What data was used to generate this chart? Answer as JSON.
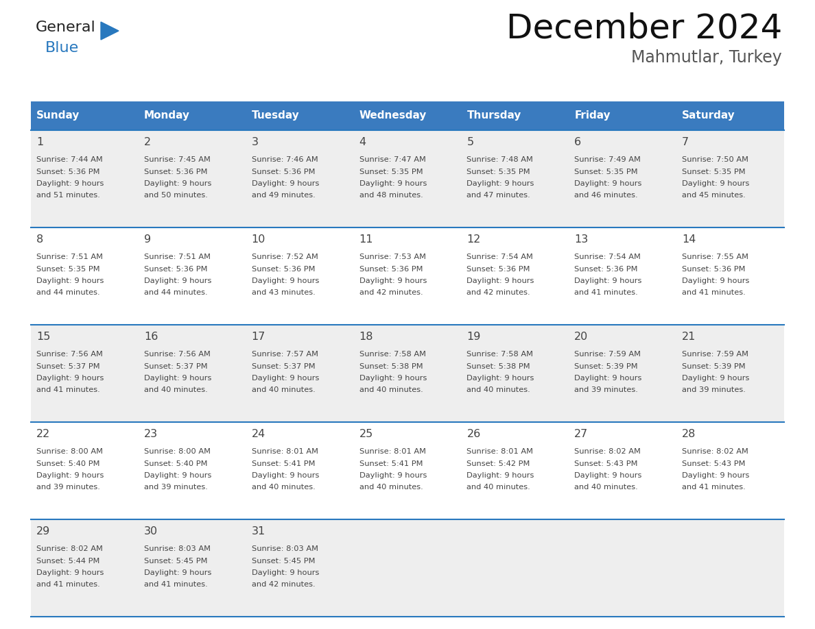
{
  "title": "December 2024",
  "subtitle": "Mahmutlar, Turkey",
  "header_color": "#3a7bbf",
  "header_text_color": "#ffffff",
  "row_bg_colors": [
    "#eeeeee",
    "#ffffff",
    "#eeeeee",
    "#ffffff",
    "#eeeeee"
  ],
  "days_of_week": [
    "Sunday",
    "Monday",
    "Tuesday",
    "Wednesday",
    "Thursday",
    "Friday",
    "Saturday"
  ],
  "weeks": [
    [
      {
        "day": 1,
        "sunrise": "7:44 AM",
        "sunset": "5:36 PM",
        "daylight_hours": 9,
        "daylight_minutes": 51
      },
      {
        "day": 2,
        "sunrise": "7:45 AM",
        "sunset": "5:36 PM",
        "daylight_hours": 9,
        "daylight_minutes": 50
      },
      {
        "day": 3,
        "sunrise": "7:46 AM",
        "sunset": "5:36 PM",
        "daylight_hours": 9,
        "daylight_minutes": 49
      },
      {
        "day": 4,
        "sunrise": "7:47 AM",
        "sunset": "5:35 PM",
        "daylight_hours": 9,
        "daylight_minutes": 48
      },
      {
        "day": 5,
        "sunrise": "7:48 AM",
        "sunset": "5:35 PM",
        "daylight_hours": 9,
        "daylight_minutes": 47
      },
      {
        "day": 6,
        "sunrise": "7:49 AM",
        "sunset": "5:35 PM",
        "daylight_hours": 9,
        "daylight_minutes": 46
      },
      {
        "day": 7,
        "sunrise": "7:50 AM",
        "sunset": "5:35 PM",
        "daylight_hours": 9,
        "daylight_minutes": 45
      }
    ],
    [
      {
        "day": 8,
        "sunrise": "7:51 AM",
        "sunset": "5:35 PM",
        "daylight_hours": 9,
        "daylight_minutes": 44
      },
      {
        "day": 9,
        "sunrise": "7:51 AM",
        "sunset": "5:36 PM",
        "daylight_hours": 9,
        "daylight_minutes": 44
      },
      {
        "day": 10,
        "sunrise": "7:52 AM",
        "sunset": "5:36 PM",
        "daylight_hours": 9,
        "daylight_minutes": 43
      },
      {
        "day": 11,
        "sunrise": "7:53 AM",
        "sunset": "5:36 PM",
        "daylight_hours": 9,
        "daylight_minutes": 42
      },
      {
        "day": 12,
        "sunrise": "7:54 AM",
        "sunset": "5:36 PM",
        "daylight_hours": 9,
        "daylight_minutes": 42
      },
      {
        "day": 13,
        "sunrise": "7:54 AM",
        "sunset": "5:36 PM",
        "daylight_hours": 9,
        "daylight_minutes": 41
      },
      {
        "day": 14,
        "sunrise": "7:55 AM",
        "sunset": "5:36 PM",
        "daylight_hours": 9,
        "daylight_minutes": 41
      }
    ],
    [
      {
        "day": 15,
        "sunrise": "7:56 AM",
        "sunset": "5:37 PM",
        "daylight_hours": 9,
        "daylight_minutes": 41
      },
      {
        "day": 16,
        "sunrise": "7:56 AM",
        "sunset": "5:37 PM",
        "daylight_hours": 9,
        "daylight_minutes": 40
      },
      {
        "day": 17,
        "sunrise": "7:57 AM",
        "sunset": "5:37 PM",
        "daylight_hours": 9,
        "daylight_minutes": 40
      },
      {
        "day": 18,
        "sunrise": "7:58 AM",
        "sunset": "5:38 PM",
        "daylight_hours": 9,
        "daylight_minutes": 40
      },
      {
        "day": 19,
        "sunrise": "7:58 AM",
        "sunset": "5:38 PM",
        "daylight_hours": 9,
        "daylight_minutes": 40
      },
      {
        "day": 20,
        "sunrise": "7:59 AM",
        "sunset": "5:39 PM",
        "daylight_hours": 9,
        "daylight_minutes": 39
      },
      {
        "day": 21,
        "sunrise": "7:59 AM",
        "sunset": "5:39 PM",
        "daylight_hours": 9,
        "daylight_minutes": 39
      }
    ],
    [
      {
        "day": 22,
        "sunrise": "8:00 AM",
        "sunset": "5:40 PM",
        "daylight_hours": 9,
        "daylight_minutes": 39
      },
      {
        "day": 23,
        "sunrise": "8:00 AM",
        "sunset": "5:40 PM",
        "daylight_hours": 9,
        "daylight_minutes": 39
      },
      {
        "day": 24,
        "sunrise": "8:01 AM",
        "sunset": "5:41 PM",
        "daylight_hours": 9,
        "daylight_minutes": 40
      },
      {
        "day": 25,
        "sunrise": "8:01 AM",
        "sunset": "5:41 PM",
        "daylight_hours": 9,
        "daylight_minutes": 40
      },
      {
        "day": 26,
        "sunrise": "8:01 AM",
        "sunset": "5:42 PM",
        "daylight_hours": 9,
        "daylight_minutes": 40
      },
      {
        "day": 27,
        "sunrise": "8:02 AM",
        "sunset": "5:43 PM",
        "daylight_hours": 9,
        "daylight_minutes": 40
      },
      {
        "day": 28,
        "sunrise": "8:02 AM",
        "sunset": "5:43 PM",
        "daylight_hours": 9,
        "daylight_minutes": 41
      }
    ],
    [
      {
        "day": 29,
        "sunrise": "8:02 AM",
        "sunset": "5:44 PM",
        "daylight_hours": 9,
        "daylight_minutes": 41
      },
      {
        "day": 30,
        "sunrise": "8:03 AM",
        "sunset": "5:45 PM",
        "daylight_hours": 9,
        "daylight_minutes": 41
      },
      {
        "day": 31,
        "sunrise": "8:03 AM",
        "sunset": "5:45 PM",
        "daylight_hours": 9,
        "daylight_minutes": 42
      },
      null,
      null,
      null,
      null
    ]
  ],
  "logo_general_color": "#222222",
  "logo_blue_color": "#2878be",
  "divider_color": "#2878be",
  "text_color": "#444444",
  "title_color": "#111111",
  "subtitle_color": "#555555"
}
